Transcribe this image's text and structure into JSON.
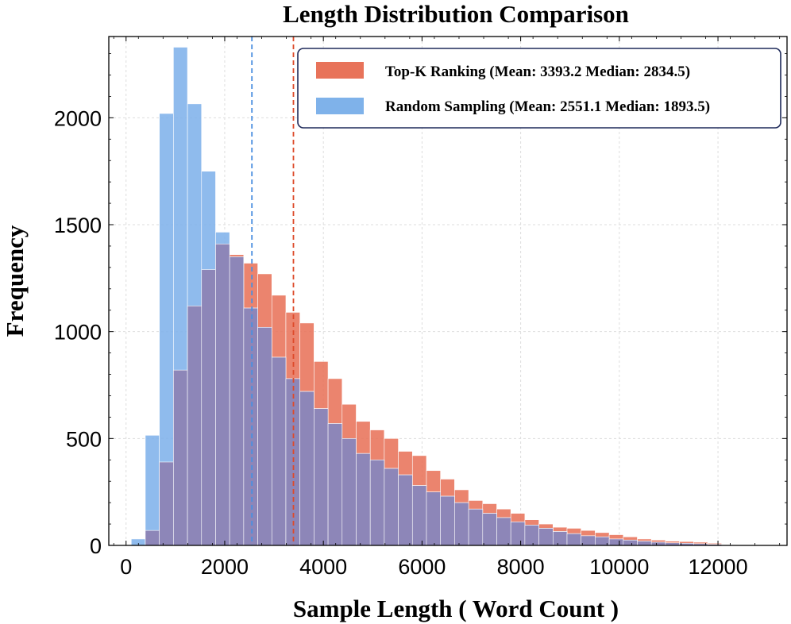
{
  "chart_data": {
    "type": "histogram",
    "title": "Length Distribution Comparison",
    "xlabel": "Sample Length ( Word Count )",
    "ylabel": "Frequency",
    "xlim": [
      -350,
      13400
    ],
    "ylim": [
      0,
      2380
    ],
    "xticks": [
      0,
      2000,
      4000,
      6000,
      8000,
      10000,
      12000
    ],
    "yticks": [
      0,
      500,
      1000,
      1500,
      2000
    ],
    "xtick_labels": [
      "0",
      "2000",
      "4000",
      "6000",
      "8000",
      "10000",
      "12000"
    ],
    "ytick_labels": [
      "0",
      "500",
      "1000",
      "1500",
      "2000"
    ],
    "grid": true,
    "legend_position": "top-right",
    "bin_width": 285,
    "series": [
      {
        "name": "Top-K Ranking",
        "legend_label": "Top-K Ranking (Mean: 3393.2 Median: 2834.5)",
        "color": "#e8735a",
        "mean": 3393.2,
        "median": 2834.5,
        "bins": [
          [
            390,
            70
          ],
          [
            675,
            390
          ],
          [
            960,
            820
          ],
          [
            1245,
            1120
          ],
          [
            1530,
            1290
          ],
          [
            1815,
            1410
          ],
          [
            2100,
            1360
          ],
          [
            2385,
            1320
          ],
          [
            2670,
            1270
          ],
          [
            2955,
            1170
          ],
          [
            3240,
            1090
          ],
          [
            3525,
            1040
          ],
          [
            3810,
            860
          ],
          [
            4095,
            780
          ],
          [
            4380,
            660
          ],
          [
            4665,
            580
          ],
          [
            4950,
            540
          ],
          [
            5235,
            500
          ],
          [
            5520,
            440
          ],
          [
            5805,
            420
          ],
          [
            6090,
            350
          ],
          [
            6375,
            310
          ],
          [
            6660,
            260
          ],
          [
            6945,
            210
          ],
          [
            7230,
            195
          ],
          [
            7515,
            170
          ],
          [
            7800,
            150
          ],
          [
            8085,
            120
          ],
          [
            8370,
            100
          ],
          [
            8655,
            85
          ],
          [
            8940,
            80
          ],
          [
            9225,
            70
          ],
          [
            9510,
            60
          ],
          [
            9795,
            50
          ],
          [
            10080,
            40
          ],
          [
            10365,
            30
          ],
          [
            10650,
            25
          ],
          [
            10935,
            20
          ],
          [
            11220,
            18
          ],
          [
            11505,
            15
          ],
          [
            11790,
            10
          ]
        ]
      },
      {
        "name": "Random Sampling",
        "legend_label": "Random Sampling (Mean: 2551.1 Median: 1893.5)",
        "color": "#7fb2ea",
        "mean": 2551.1,
        "median": 1893.5,
        "bins": [
          [
            105,
            30
          ],
          [
            390,
            515
          ],
          [
            675,
            2020
          ],
          [
            960,
            2330
          ],
          [
            1245,
            2065
          ],
          [
            1530,
            1750
          ],
          [
            1815,
            1465
          ],
          [
            2100,
            1350
          ],
          [
            2385,
            1110
          ],
          [
            2670,
            1020
          ],
          [
            2955,
            880
          ],
          [
            3240,
            780
          ],
          [
            3525,
            720
          ],
          [
            3810,
            640
          ],
          [
            4095,
            570
          ],
          [
            4380,
            500
          ],
          [
            4665,
            430
          ],
          [
            4950,
            400
          ],
          [
            5235,
            360
          ],
          [
            5520,
            330
          ],
          [
            5805,
            280
          ],
          [
            6090,
            250
          ],
          [
            6375,
            230
          ],
          [
            6660,
            200
          ],
          [
            6945,
            170
          ],
          [
            7230,
            150
          ],
          [
            7515,
            130
          ],
          [
            7800,
            110
          ],
          [
            8085,
            95
          ],
          [
            8370,
            80
          ],
          [
            8655,
            65
          ],
          [
            8940,
            55
          ],
          [
            9225,
            45
          ],
          [
            9510,
            40
          ],
          [
            9795,
            30
          ],
          [
            10080,
            25
          ],
          [
            10365,
            20
          ],
          [
            10650,
            15
          ],
          [
            10935,
            12
          ],
          [
            11220,
            10
          ],
          [
            11505,
            8
          ],
          [
            11790,
            5
          ]
        ]
      }
    ]
  }
}
